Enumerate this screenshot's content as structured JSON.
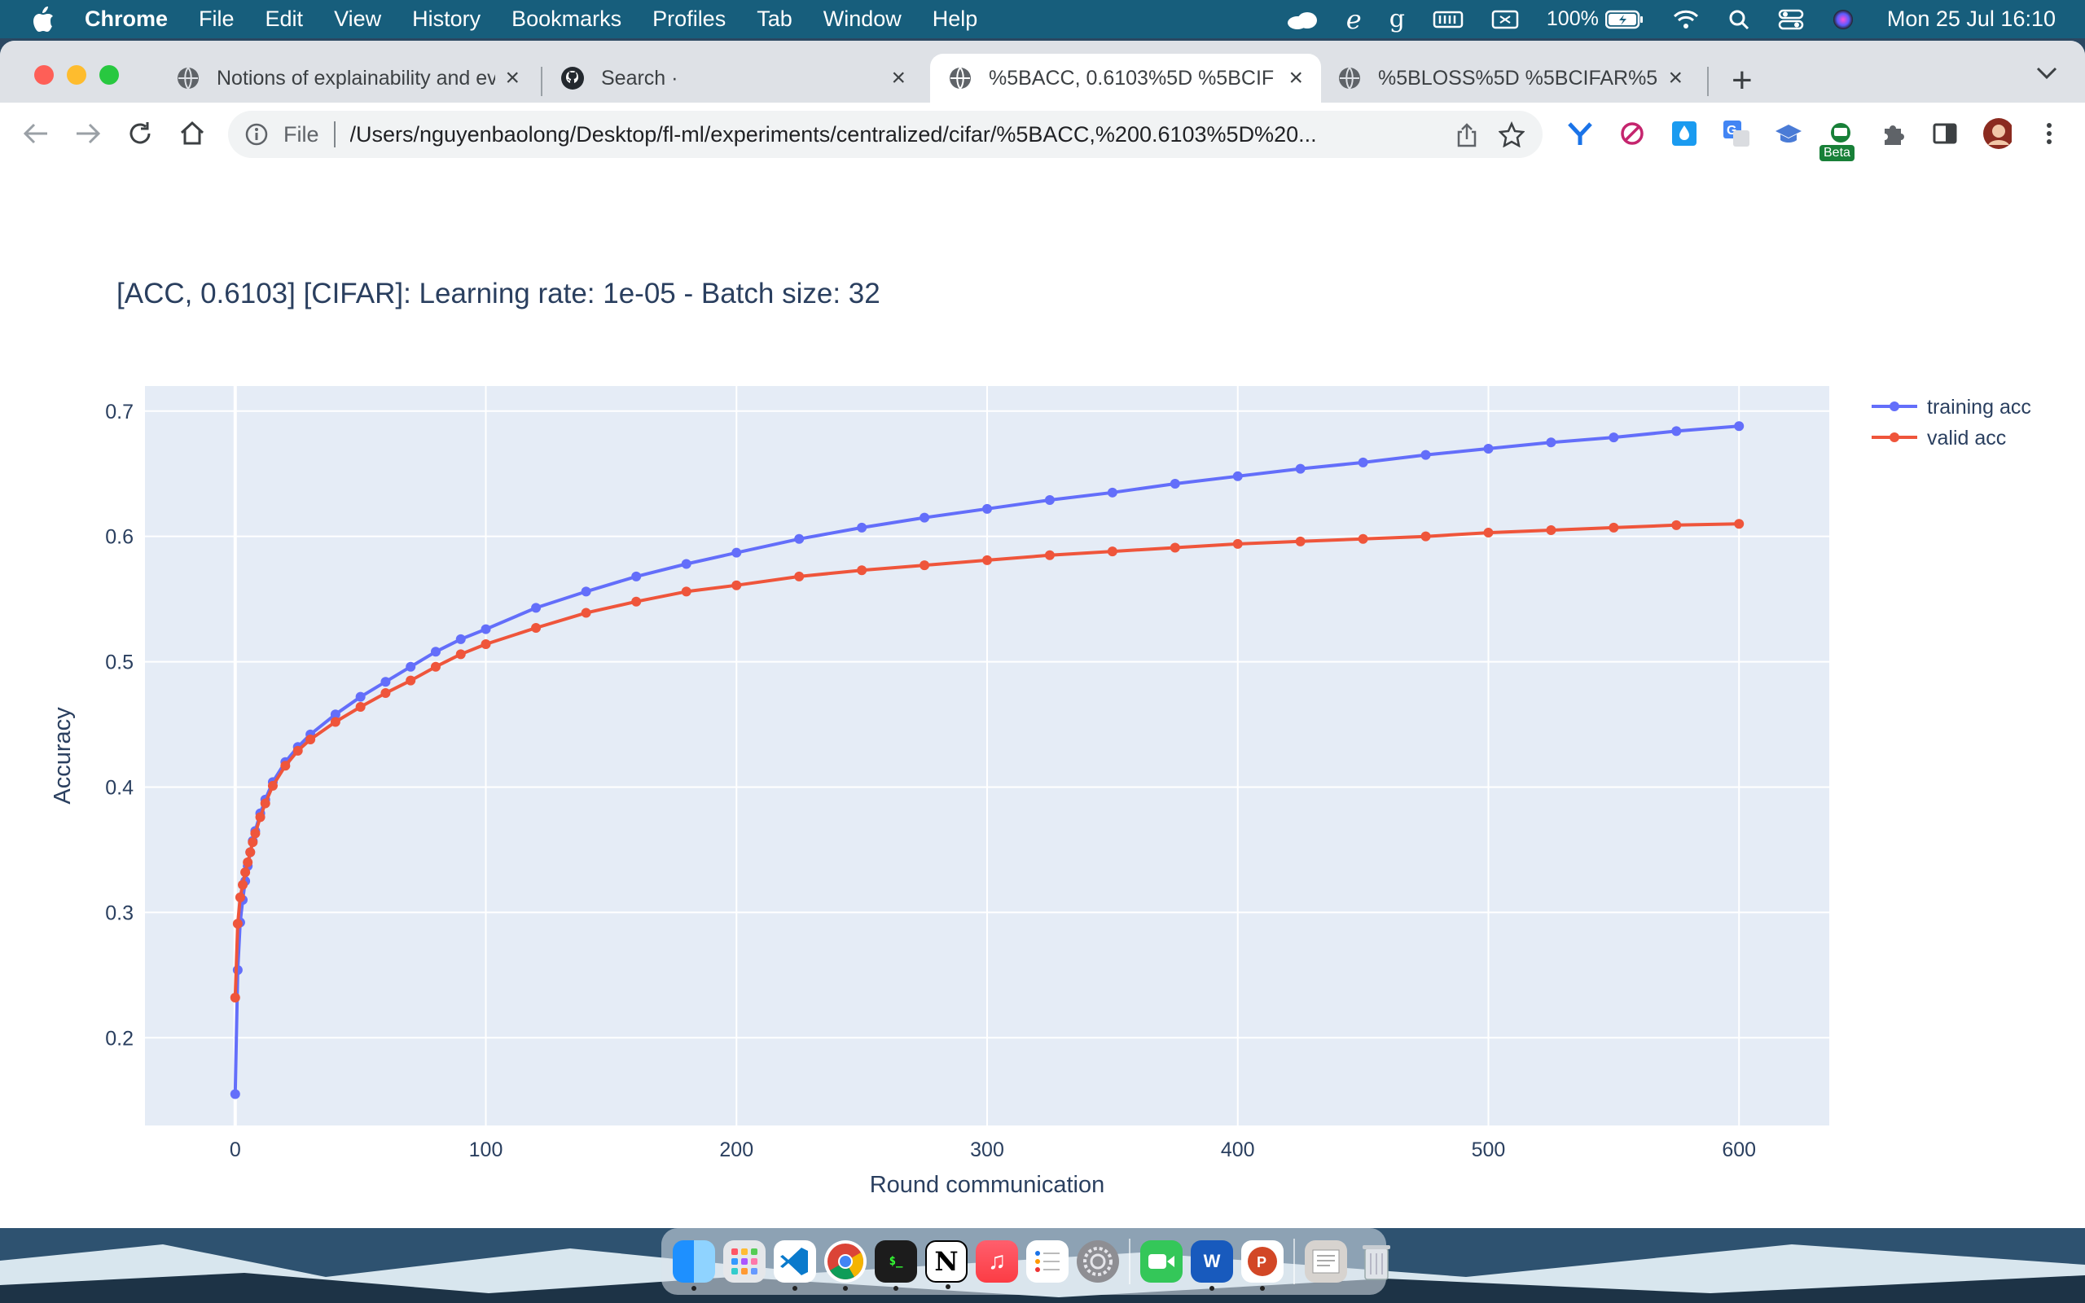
{
  "menubar": {
    "app_name": "Chrome",
    "menus": [
      "File",
      "Edit",
      "View",
      "History",
      "Bookmarks",
      "Profiles",
      "Tab",
      "Window",
      "Help"
    ],
    "battery": "100%",
    "clock": "Mon 25 Jul  16:10",
    "status_icons": [
      "cloud-icon",
      "e-icon",
      "g-icon",
      "memory-icon",
      "display-icon",
      "battery-icon",
      "wifi-icon",
      "spotlight-icon",
      "control-center-icon",
      "siri-icon"
    ]
  },
  "tabs": [
    {
      "title": "Notions of explainability and ev",
      "favicon": "globe-icon",
      "active": false
    },
    {
      "title": "Search ·",
      "favicon": "github-icon",
      "active": false
    },
    {
      "title": "%5BACC, 0.6103%5D %5BCIF",
      "favicon": "globe-icon",
      "active": true
    },
    {
      "title": "%5BLOSS%5D %5BCIFAR%5D",
      "favicon": "globe-icon",
      "active": false
    }
  ],
  "omnibox": {
    "scheme": "File",
    "url": "/Users/nguyenbaolong/Desktop/fl-ml/experiments/centralized/cifar/%5BACC,%200.6103%5D%20..."
  },
  "extensions": {
    "beta_label": "Beta"
  },
  "chart_data": {
    "type": "line",
    "title": "[ACC, 0.6103] [CIFAR]: Learning rate: 1e-05 - Batch size: 32",
    "xlabel": "Round communication",
    "ylabel": "Accuracy",
    "xlim": [
      -36,
      636
    ],
    "ylim": [
      0.13,
      0.72
    ],
    "xticks": [
      0,
      100,
      200,
      300,
      400,
      500,
      600
    ],
    "yticks": [
      0.2,
      0.3,
      0.4,
      0.5,
      0.6,
      0.7
    ],
    "grid": true,
    "legend_position": "top-right",
    "series": [
      {
        "name": "training acc",
        "color": "#636efa",
        "x": [
          0,
          1,
          2,
          3,
          4,
          5,
          6,
          7,
          8,
          10,
          12,
          15,
          20,
          25,
          30,
          40,
          50,
          60,
          70,
          80,
          90,
          100,
          120,
          140,
          160,
          180,
          200,
          225,
          250,
          275,
          300,
          325,
          350,
          375,
          400,
          425,
          450,
          475,
          500,
          525,
          550,
          575,
          600
        ],
        "y": [
          0.155,
          0.254,
          0.292,
          0.31,
          0.325,
          0.337,
          0.348,
          0.357,
          0.365,
          0.379,
          0.39,
          0.404,
          0.42,
          0.432,
          0.442,
          0.458,
          0.472,
          0.484,
          0.496,
          0.508,
          0.518,
          0.526,
          0.543,
          0.556,
          0.568,
          0.578,
          0.587,
          0.598,
          0.607,
          0.615,
          0.622,
          0.629,
          0.635,
          0.642,
          0.648,
          0.654,
          0.659,
          0.665,
          0.67,
          0.675,
          0.679,
          0.684,
          0.688
        ]
      },
      {
        "name": "valid acc",
        "color": "#ef553b",
        "x": [
          0,
          1,
          2,
          3,
          4,
          5,
          6,
          7,
          8,
          10,
          12,
          15,
          20,
          25,
          30,
          40,
          50,
          60,
          70,
          80,
          90,
          100,
          120,
          140,
          160,
          180,
          200,
          225,
          250,
          275,
          300,
          325,
          350,
          375,
          400,
          425,
          450,
          475,
          500,
          525,
          550,
          575,
          600
        ],
        "y": [
          0.232,
          0.291,
          0.312,
          0.322,
          0.332,
          0.34,
          0.348,
          0.356,
          0.363,
          0.376,
          0.387,
          0.401,
          0.417,
          0.429,
          0.438,
          0.452,
          0.464,
          0.475,
          0.485,
          0.496,
          0.506,
          0.514,
          0.527,
          0.539,
          0.548,
          0.556,
          0.561,
          0.568,
          0.573,
          0.577,
          0.581,
          0.585,
          0.588,
          0.591,
          0.594,
          0.596,
          0.598,
          0.6,
          0.603,
          0.605,
          0.607,
          0.609,
          0.61
        ]
      }
    ]
  }
}
